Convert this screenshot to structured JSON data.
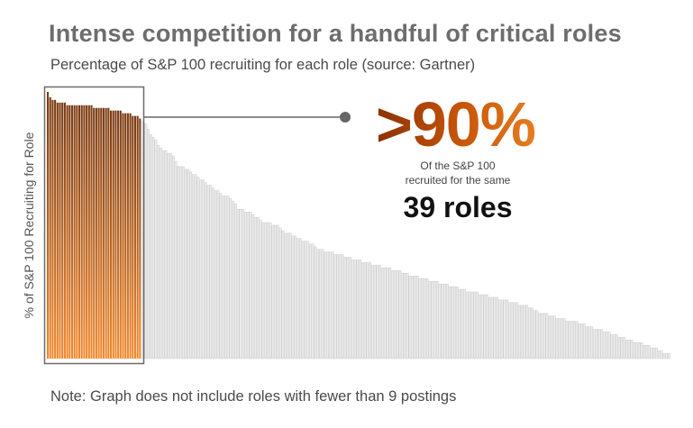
{
  "title": "Intense competition for a handful of critical roles",
  "subtitle": "Percentage of S&P 100 recruiting for each role (source: Gartner)",
  "colors": {
    "highlight_top": "#7a3a12",
    "highlight_bottom": "#f28a2e",
    "bar_fill": "#ececec",
    "bar_stroke": "#c4c4c4",
    "box": "#6b6b6b",
    "connector": "#666666"
  },
  "callout": {
    "big_stat": ">90%",
    "line1": "Of the S&P 100",
    "line2": "recruited for the same",
    "roles_stat": "39 roles"
  },
  "note": "Note:  Graph does not include roles with fewer than 9 postings",
  "chart_data": {
    "type": "bar",
    "ylabel": "% of S&P 100 Recruiting for Role",
    "xlabel": "",
    "ylim": [
      0,
      100
    ],
    "grid": false,
    "highlighted_count": 39,
    "values": [
      100,
      98,
      97,
      97,
      96,
      96,
      96,
      96,
      95,
      95,
      95,
      95,
      95,
      95,
      95,
      95,
      95,
      95,
      95,
      94,
      94,
      94,
      94,
      94,
      94,
      94,
      93,
      93,
      93,
      93,
      93,
      92,
      92,
      92,
      92,
      91,
      91,
      91,
      90,
      89,
      88,
      86,
      84,
      83,
      82,
      80,
      79,
      78,
      78,
      77,
      77,
      76,
      74,
      72,
      72,
      72,
      71,
      71,
      70,
      69,
      69,
      68,
      67,
      67,
      66,
      65,
      65,
      64,
      63,
      63,
      62,
      61,
      61,
      61,
      60,
      59,
      58,
      56,
      56,
      56,
      55,
      55,
      55,
      54,
      53,
      53,
      52,
      51,
      51,
      51,
      51,
      50,
      50,
      50,
      49,
      48,
      47,
      47,
      47,
      46,
      46,
      45,
      45,
      44,
      44,
      44,
      43,
      43,
      42,
      41,
      41,
      41,
      40,
      40,
      40,
      40,
      39,
      39,
      39,
      39,
      38,
      38,
      38,
      37,
      37,
      37,
      37,
      36,
      36,
      36,
      36,
      35,
      35,
      35,
      35,
      34,
      34,
      34,
      34,
      33,
      33,
      33,
      33,
      32,
      32,
      32,
      31,
      31,
      31,
      31,
      30,
      30,
      30,
      30,
      29,
      29,
      29,
      29,
      28,
      28,
      28,
      28,
      27,
      27,
      27,
      27,
      26,
      26,
      26,
      25,
      25,
      25,
      25,
      25,
      24,
      24,
      24,
      24,
      23,
      23,
      23,
      23,
      22,
      22,
      22,
      22,
      21,
      21,
      21,
      21,
      20,
      20,
      20,
      20,
      19,
      19,
      18,
      18,
      17,
      17,
      17,
      17,
      16,
      16,
      16,
      15,
      15,
      15,
      15,
      14,
      14,
      14,
      14,
      14,
      13,
      13,
      13,
      12,
      12,
      12,
      11,
      11,
      11,
      11,
      10,
      10,
      10,
      9,
      9,
      9,
      8,
      8,
      8,
      7,
      7,
      7,
      6,
      6,
      6,
      6,
      5,
      5,
      5,
      4,
      4,
      4,
      3,
      3,
      2,
      2,
      2
    ]
  }
}
